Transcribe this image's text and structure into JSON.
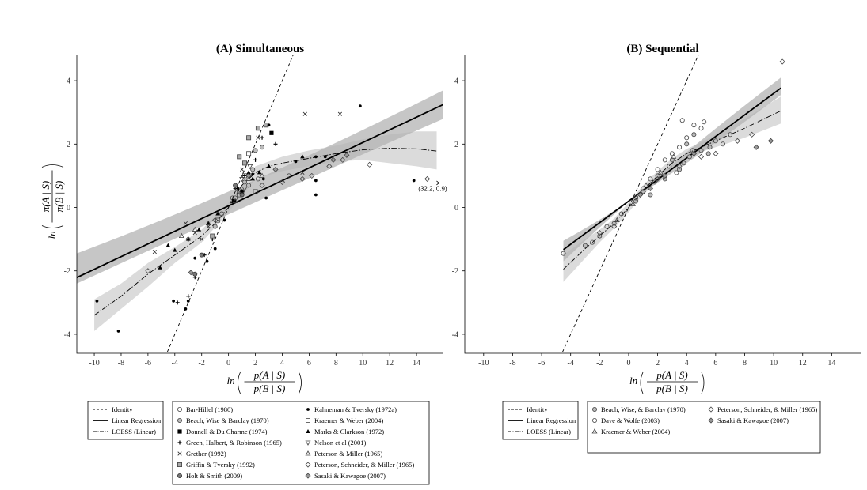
{
  "chart_data": [
    {
      "type": "scatter",
      "title": "(A) Simultaneous",
      "xlabel": "ln(p(A | S) / p(B | S))",
      "ylabel": "ln(π(A | S) / π(B | S))",
      "xlim": [
        -11.3,
        16
      ],
      "ylim": [
        -4.6,
        4.8
      ],
      "x_ticks": [
        -10,
        -8,
        -6,
        -4,
        -2,
        0,
        2,
        4,
        6,
        8,
        10,
        12,
        14
      ],
      "y_ticks": [
        -4,
        -2,
        0,
        2,
        4
      ],
      "grid": false,
      "identity": {
        "name": "Identity",
        "slope": 1,
        "intercept": 0
      },
      "regression": {
        "name": "Linear Regression",
        "slope": 0.2,
        "intercept": 0.05
      },
      "regression_band": {
        "low_left": -1.45,
        "high_left": -2.4,
        "low_right": 2.8,
        "high_right": 3.7
      },
      "loess": {
        "name": "LOESS (Linear)",
        "x": [
          -10,
          -8,
          -6,
          -4,
          -2,
          -1,
          0,
          1,
          2,
          3,
          4,
          6,
          8,
          10,
          12,
          14,
          15.5
        ],
        "y": [
          -3.4,
          -2.8,
          -2.1,
          -1.5,
          -0.9,
          -0.5,
          0,
          0.7,
          1.1,
          1.3,
          1.4,
          1.55,
          1.7,
          1.82,
          1.87,
          1.85,
          1.78
        ]
      },
      "loess_band": {
        "x": [
          -10,
          -8,
          -6,
          -4,
          -2,
          0,
          2,
          4,
          6,
          8,
          10,
          12,
          14,
          15.5
        ],
        "lo": [
          -3.9,
          -3.2,
          -2.5,
          -1.75,
          -1.1,
          -0.15,
          0.9,
          1.15,
          1.3,
          1.45,
          1.5,
          1.4,
          1.3,
          1.2
        ],
        "hi": [
          -2.9,
          -2.4,
          -1.75,
          -1.25,
          -0.7,
          0.15,
          1.3,
          1.6,
          1.8,
          1.95,
          2.15,
          2.3,
          2.4,
          2.4
        ]
      },
      "annotation": {
        "text": "(32.2, 0.9)",
        "x": 15.2,
        "y": 0.55
      },
      "legend_lines": [
        "Identity",
        "Linear Regression",
        "LOESS (Linear)"
      ],
      "series": [
        {
          "name": "Bar-Hillel (1980)",
          "marker": "circle-open",
          "points": [
            [
              0.3,
              0.3
            ],
            [
              0.8,
              0.5
            ],
            [
              1.5,
              0.7
            ],
            [
              2.2,
              0.9
            ],
            [
              4.5,
              1.0
            ],
            [
              -0.5,
              -0.2
            ]
          ]
        },
        {
          "name": "Beach, Wise & Barclay (1970)",
          "marker": "circle-gray",
          "points": [
            [
              1.2,
              0.8
            ],
            [
              2.0,
              1.8
            ],
            [
              2.5,
              1.9
            ],
            [
              0.5,
              0.3
            ],
            [
              1.8,
              1.2
            ],
            [
              -1.0,
              -0.6
            ]
          ]
        },
        {
          "name": "Donnell & Du Charme (1974)",
          "marker": "square-filled",
          "points": [
            [
              3.2,
              2.35
            ],
            [
              1.0,
              0.5
            ],
            [
              0.4,
              0.2
            ]
          ]
        },
        {
          "name": "Green, Halbert, & Robinson (1965)",
          "marker": "plus",
          "points": [
            [
              -3.8,
              -3.0
            ],
            [
              -2.5,
              -2.2
            ],
            [
              -1.8,
              -1.5
            ],
            [
              -1.2,
              -1.0
            ],
            [
              0.5,
              0.6
            ],
            [
              1.2,
              1.0
            ],
            [
              2.0,
              1.5
            ],
            [
              2.5,
              2.2
            ],
            [
              3.5,
              2.0
            ],
            [
              -3.0,
              -2.8
            ]
          ]
        },
        {
          "name": "Grether (1992)",
          "marker": "x",
          "points": [
            [
              5.7,
              2.95
            ],
            [
              8.3,
              2.95
            ],
            [
              2.2,
              2.2
            ],
            [
              -2.5,
              -0.8
            ],
            [
              -3.2,
              -0.5
            ],
            [
              -5.5,
              -1.4
            ],
            [
              -2.0,
              -1.0
            ],
            [
              1.0,
              1.2
            ],
            [
              5.5,
              1.1
            ],
            [
              -1.5,
              -0.6
            ]
          ]
        },
        {
          "name": "Griffin & Tversky (1992)",
          "marker": "square-gray",
          "points": [
            [
              2.2,
              2.5
            ],
            [
              1.5,
              2.2
            ],
            [
              0.8,
              1.6
            ],
            [
              2.8,
              2.6
            ],
            [
              -1.2,
              -0.9
            ],
            [
              1.2,
              1.4
            ]
          ]
        },
        {
          "name": "Holt & Smith (2009)",
          "marker": "circle-dark",
          "points": [
            [
              -2.5,
              -2.1
            ],
            [
              -2.0,
              -1.5
            ],
            [
              0.5,
              0.7
            ],
            [
              1.0,
              0.4
            ]
          ]
        },
        {
          "name": "Kahneman & Tversky (1972a)",
          "marker": "dot",
          "points": [
            [
              9.8,
              3.2
            ],
            [
              13.8,
              0.85
            ],
            [
              6.5,
              0.4
            ],
            [
              6.5,
              0.85
            ],
            [
              3.0,
              2.6
            ],
            [
              -9.8,
              -2.95
            ],
            [
              -8.2,
              -3.9
            ],
            [
              -4.1,
              -2.95
            ],
            [
              -3.0,
              -2.95
            ],
            [
              -3.2,
              -3.2
            ],
            [
              -1.6,
              -1.7
            ],
            [
              -1.0,
              -1.3
            ],
            [
              2.8,
              0.3
            ],
            [
              0.7,
              0.6
            ],
            [
              -0.3,
              -0.4
            ],
            [
              6.5,
              1.6
            ],
            [
              5.0,
              1.45
            ],
            [
              7.2,
              1.6
            ],
            [
              -2.5,
              -1.6
            ],
            [
              2.6,
              0.9
            ],
            [
              1.8,
              1.05
            ]
          ]
        },
        {
          "name": "Kraemer & Weber (2004)",
          "marker": "square-open",
          "points": [
            [
              1.5,
              1.7
            ],
            [
              1.2,
              1.0
            ],
            [
              2.0,
              0.5
            ],
            [
              0.8,
              0.4
            ],
            [
              -0.8,
              -0.4
            ]
          ]
        },
        {
          "name": "Marks & Clarkson (1972)",
          "marker": "triangle-filled",
          "points": [
            [
              -4.0,
              -1.35
            ],
            [
              -3.0,
              -1.0
            ],
            [
              -5.1,
              -1.9
            ],
            [
              -2.2,
              -0.7
            ],
            [
              -0.8,
              -0.2
            ],
            [
              1.5,
              1.1
            ],
            [
              2.3,
              1.1
            ],
            [
              3.0,
              1.3
            ],
            [
              1.8,
              0.9
            ],
            [
              5.5,
              1.6
            ],
            [
              -4.5,
              -1.2
            ],
            [
              -1.5,
              -0.5
            ]
          ]
        },
        {
          "name": "Nelson et al (2001)",
          "marker": "triangle-down",
          "points": [
            [
              0.6,
              0.6
            ],
            [
              1.0,
              0.9
            ],
            [
              1.6,
              1.3
            ],
            [
              1.2,
              0.6
            ]
          ]
        },
        {
          "name": "Peterson & Miller (1965)",
          "marker": "triangle-open",
          "points": [
            [
              -3.5,
              -0.9
            ],
            [
              -1.5,
              -0.5
            ],
            [
              0.5,
              0.2
            ],
            [
              1.5,
              0.9
            ],
            [
              2.5,
              1.0
            ],
            [
              -2.5,
              -0.7
            ]
          ]
        },
        {
          "name": "Peterson, Schneider, & Miller (1965)",
          "marker": "diamond-open",
          "points": [
            [
              10.5,
              1.35
            ],
            [
              14.8,
              0.9
            ],
            [
              5.5,
              0.9
            ],
            [
              6.2,
              1.0
            ],
            [
              4.0,
              0.8
            ],
            [
              2.5,
              0.7
            ],
            [
              1.0,
              0.5
            ],
            [
              -1.0,
              -0.4
            ],
            [
              -3.0,
              -1.0
            ],
            [
              -6.0,
              -2.0
            ],
            [
              7.5,
              1.3
            ],
            [
              8.5,
              1.5
            ]
          ]
        },
        {
          "name": "Sasaki & Kawagoe (2007)",
          "marker": "diamond-gray",
          "points": [
            [
              8.8,
              1.65
            ],
            [
              7.8,
              1.5
            ],
            [
              -2.8,
              -2.05
            ],
            [
              1.5,
              1.0
            ],
            [
              3.5,
              1.2
            ]
          ]
        }
      ]
    },
    {
      "type": "scatter",
      "title": "(B) Sequential",
      "xlabel": "ln(p(A | S) / p(B | S))",
      "ylabel": "",
      "xlim": [
        -11.3,
        16
      ],
      "ylim": [
        -4.6,
        4.8
      ],
      "x_ticks": [
        -10,
        -8,
        -6,
        -4,
        -2,
        0,
        2,
        4,
        6,
        8,
        10,
        12,
        14
      ],
      "y_ticks": [
        -4,
        -2,
        0,
        2,
        4
      ],
      "grid": false,
      "identity": {
        "name": "Identity",
        "slope": 1,
        "intercept": 0
      },
      "regression": {
        "name": "Linear Regression",
        "slope": 0.34,
        "intercept": 0.2,
        "x_range": [
          -4.5,
          10.5
        ]
      },
      "regression_band": {
        "low_left": -1.7,
        "high_left": -1.05,
        "low_right": 3.55,
        "high_right": 4.1
      },
      "loess": {
        "name": "LOESS (Linear)",
        "x": [
          -4.5,
          -3,
          -2,
          -1,
          0,
          1,
          2,
          3,
          4,
          5,
          6,
          8,
          10.5
        ],
        "y": [
          -1.95,
          -1.3,
          -0.9,
          -0.5,
          0.0,
          0.55,
          1.0,
          1.4,
          1.7,
          1.9,
          2.1,
          2.5,
          3.05
        ]
      },
      "loess_band": {
        "x": [
          -4.5,
          -3,
          -2,
          -1,
          0,
          1,
          2,
          3,
          4,
          5,
          6,
          8,
          10.5
        ],
        "lo": [
          -2.35,
          -1.6,
          -1.1,
          -0.65,
          -0.15,
          0.4,
          0.85,
          1.25,
          1.55,
          1.75,
          1.9,
          2.2,
          2.65
        ],
        "hi": [
          -1.5,
          -1.0,
          -0.7,
          -0.35,
          0.15,
          0.7,
          1.15,
          1.55,
          1.85,
          2.05,
          2.3,
          2.8,
          3.5
        ]
      },
      "legend_lines": [
        "Identity",
        "Linear Regression",
        "LOESS (Linear)"
      ],
      "series": [
        {
          "name": "Beach, Wise, & Barclay (1970)",
          "marker": "circle-gray",
          "points": [
            [
              1.0,
              0.5
            ],
            [
              2.0,
              1.0
            ],
            [
              3.0,
              1.5
            ],
            [
              4.0,
              2.0
            ],
            [
              4.5,
              2.3
            ],
            [
              5.0,
              1.8
            ],
            [
              5.5,
              1.7
            ],
            [
              6.0,
              2.1
            ],
            [
              3.5,
              1.2
            ],
            [
              2.5,
              0.9
            ],
            [
              -1.0,
              -0.5
            ],
            [
              -2.0,
              -0.9
            ],
            [
              -3.0,
              -1.2
            ],
            [
              1.5,
              0.4
            ],
            [
              0.5,
              0.2
            ],
            [
              4.2,
              1.6
            ],
            [
              5.6,
              1.9
            ],
            [
              3.8,
              1.4
            ]
          ]
        },
        {
          "name": "Dave & Wolfe (2003)",
          "marker": "circle-open",
          "points": [
            [
              0.5,
              0.3
            ],
            [
              1.0,
              0.6
            ],
            [
              1.5,
              0.9
            ],
            [
              2.0,
              1.2
            ],
            [
              2.5,
              1.5
            ],
            [
              3.0,
              1.7
            ],
            [
              3.5,
              1.9
            ],
            [
              4.0,
              2.2
            ],
            [
              4.5,
              2.6
            ],
            [
              5.0,
              2.5
            ],
            [
              -0.5,
              -0.2
            ],
            [
              -1.5,
              -0.6
            ],
            [
              -2.5,
              -1.1
            ],
            [
              -4.5,
              -1.45
            ],
            [
              2.8,
              1.3
            ],
            [
              3.3,
              1.1
            ],
            [
              1.8,
              0.8
            ],
            [
              6.5,
              2.0
            ],
            [
              7.0,
              2.3
            ],
            [
              5.2,
              2.7
            ],
            [
              4.4,
              1.8
            ],
            [
              3.7,
              2.75
            ]
          ]
        },
        {
          "name": "Kraemer & Weber (2004)",
          "marker": "triangle-open",
          "points": [
            [
              1.2,
              0.7
            ],
            [
              2.2,
              1.1
            ],
            [
              0.3,
              0.1
            ],
            [
              -0.8,
              -0.4
            ],
            [
              3.1,
              1.6
            ]
          ]
        },
        {
          "name": "Peterson, Schneider, & Miller (1965)",
          "marker": "diamond-open",
          "points": [
            [
              10.6,
              4.6
            ],
            [
              8.5,
              2.3
            ],
            [
              6.0,
              1.7
            ],
            [
              5.0,
              1.6
            ],
            [
              3.5,
              1.3
            ],
            [
              2.0,
              0.9
            ],
            [
              1.0,
              0.5
            ],
            [
              -1.0,
              -0.6
            ],
            [
              -2.0,
              -0.8
            ],
            [
              7.5,
              2.1
            ]
          ]
        },
        {
          "name": "Sasaki & Kawagoe (2007)",
          "marker": "diamond-gray",
          "points": [
            [
              9.8,
              2.1
            ],
            [
              8.8,
              1.9
            ],
            [
              4.5,
              1.7
            ],
            [
              2.5,
              1.0
            ],
            [
              1.5,
              0.6
            ],
            [
              0.8,
              0.4
            ]
          ]
        }
      ]
    }
  ]
}
